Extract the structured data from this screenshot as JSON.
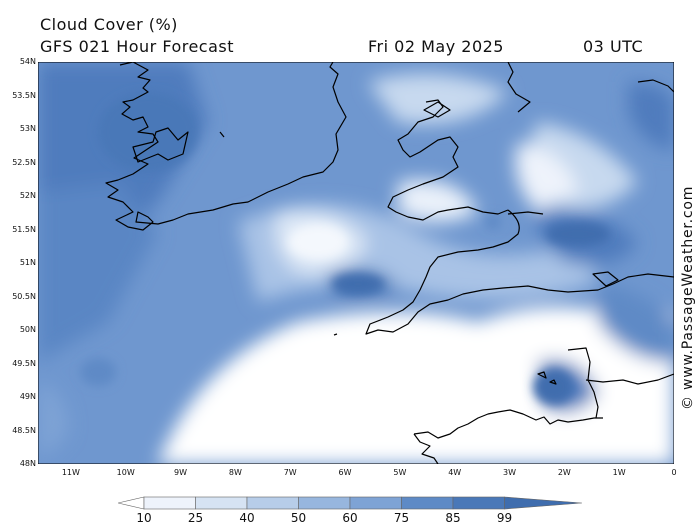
{
  "title": "Cloud Cover (%)",
  "subtitle": "GFS 021 Hour Forecast",
  "date": "Fri 02 May 2025",
  "time": "03 UTC",
  "credit": "© www.PassageWeather.com",
  "lat_labels": [
    "54N",
    "53.5N",
    "53N",
    "52.5N",
    "52N",
    "51.5N",
    "51N",
    "50.5N",
    "50N",
    "49.5N",
    "49N",
    "48.5N",
    "48N"
  ],
  "lon_labels": [
    "11W",
    "10W",
    "9W",
    "8W",
    "7W",
    "6W",
    "5W",
    "4W",
    "3W",
    "2W",
    "1W",
    "0"
  ],
  "colorbar": {
    "labels": [
      "10",
      "25",
      "40",
      "50",
      "60",
      "75",
      "85",
      "99"
    ],
    "colors": [
      "#ffffff",
      "#eef3fb",
      "#d6e3f3",
      "#b7cde9",
      "#97b6de",
      "#7ea3d5",
      "#5e8ac6",
      "#4a78b8",
      "#3f6dae"
    ]
  },
  "map": {
    "lat_range": [
      48,
      54
    ],
    "lon_range": [
      -11.6,
      0
    ],
    "ocean_color": "#6a93cc",
    "coast_color": "#000000"
  }
}
